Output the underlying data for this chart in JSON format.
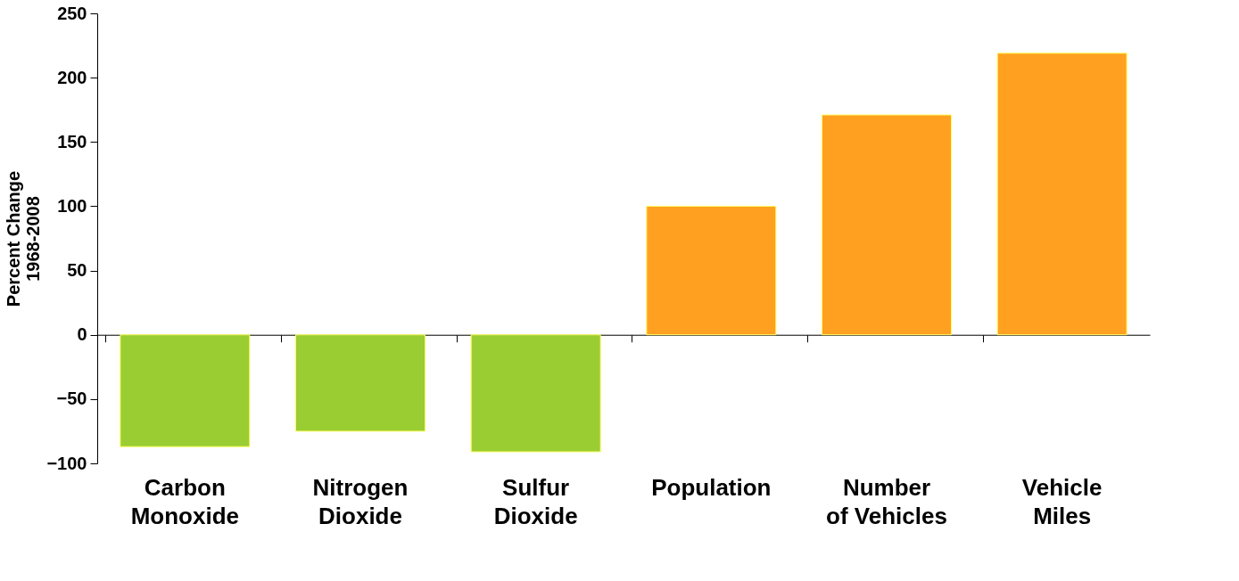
{
  "chart_data": {
    "type": "bar",
    "categories": [
      "Carbon\nMonoxide",
      "Nitrogen\nDioxide",
      "Sulfur\nDioxide",
      "Population",
      "Number\nof Vehicles",
      "Vehicle\nMiles"
    ],
    "values": [
      -87,
      -75,
      -91,
      100,
      171,
      219
    ],
    "colors": [
      "#9acd32",
      "#9acd32",
      "#9acd32",
      "#ffa020",
      "#ffa020",
      "#ffa020"
    ],
    "ylabel": "Percent Change\n1968-2008",
    "ylim": [
      -100,
      250
    ],
    "yticks": [
      -100,
      -50,
      0,
      50,
      100,
      150,
      200,
      250
    ]
  }
}
